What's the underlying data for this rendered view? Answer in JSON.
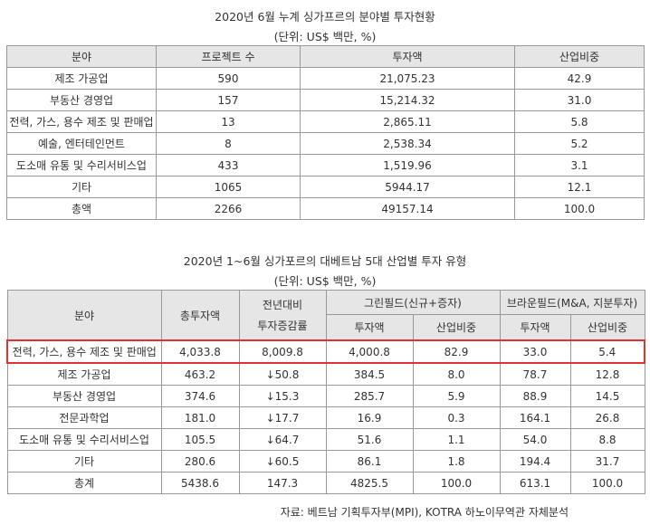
{
  "table1": {
    "title": "2020년 6월 누계 싱가프르의 분야별 투자현황",
    "unit": "(단위: US$ 백만, %)",
    "headers": [
      "분야",
      "프로젝트 수",
      "투자액",
      "산업비중"
    ],
    "rows": [
      [
        "제조 가공업",
        "590",
        "21,075.23",
        "42.9"
      ],
      [
        "부동산 경영업",
        "157",
        "15,214.32",
        "31.0"
      ],
      [
        "전력, 가스, 용수 제조 및 판매업",
        "13",
        "2,865.11",
        "5.8"
      ],
      [
        "예술, 엔터테인먼트",
        "8",
        "2,538.34",
        "5.2"
      ],
      [
        "도소매 유통 및 수리서비스업",
        "433",
        "1,519.96",
        "3.1"
      ],
      [
        "기타",
        "1065",
        "5944.17",
        "12.1"
      ],
      [
        "총액",
        "2266",
        "49157.14",
        "100.0"
      ]
    ]
  },
  "table2": {
    "title": "2020년 1~6월 싱가포르의 대베트남 5대 산업별 투자 유형",
    "unit": "(단위: US$ 백만, %)",
    "headers": {
      "field": "분야",
      "total": "총투자액",
      "yoy_line1": "전년대비",
      "yoy_line2": "투자증감률",
      "greenfield": "그린필드(신규+증자)",
      "brownfield": "브라운필드(M&A, 지분투자)",
      "amount": "투자액",
      "share": "산업비중"
    },
    "rows": [
      [
        "전력, 가스, 용수 제조 및 판매업",
        "4,033.8",
        "8,009.8",
        "4,000.8",
        "82.9",
        "33.0",
        "5.4"
      ],
      [
        "제조 가공업",
        "463.2",
        "↓50.8",
        "384.5",
        "8.0",
        "78.7",
        "12.8"
      ],
      [
        "부동산 경영업",
        "374.6",
        "↓15.3",
        "285.7",
        "5.9",
        "88.9",
        "14.5"
      ],
      [
        "전문과학업",
        "181.0",
        "↓17.7",
        "16.9",
        "0.3",
        "164.1",
        "26.8"
      ],
      [
        "도소매 유통 및 수리서비스업",
        "105.5",
        "↓64.7",
        "51.6",
        "1.1",
        "54.0",
        "8.8"
      ],
      [
        "기타",
        "280.6",
        "↓60.5",
        "86.1",
        "1.8",
        "194.4",
        "31.7"
      ],
      [
        "총계",
        "5438.6",
        "147.3",
        "4825.5",
        "100.0",
        "613.1",
        "100.0"
      ]
    ],
    "highlight_color": "#dd3333"
  },
  "footnote": "자료: 베트남 기획투자부(MPI), KOTRA 하노이무역관 자체분석"
}
